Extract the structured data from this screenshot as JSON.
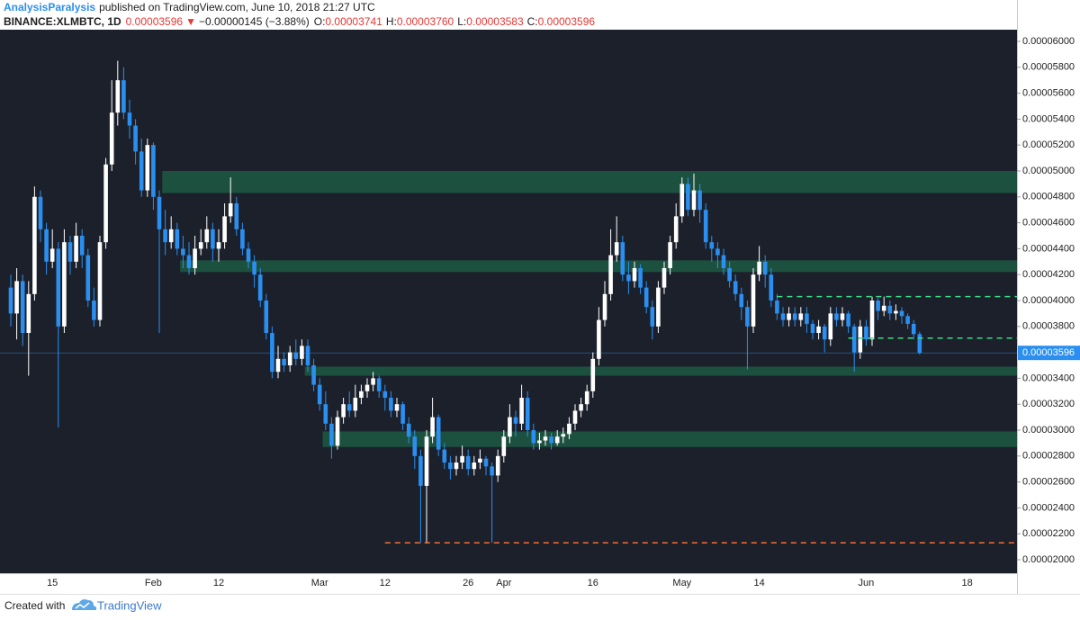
{
  "header": {
    "author": "AnalysisParalysis",
    "published": "published on TradingView.com, June 10, 2018 21:27 UTC",
    "symbol": "BINANCE:XLMBTC, 1D",
    "last": "0.00003596",
    "arrow": "▼",
    "change": "−0.00000145 (−3.88%)",
    "ohlc": [
      {
        "label": "O:",
        "value": "0.00003741"
      },
      {
        "label": "H:",
        "value": "0.00003760"
      },
      {
        "label": "L:",
        "value": "0.00003583"
      },
      {
        "label": "C:",
        "value": "0.00003596"
      }
    ]
  },
  "footer": {
    "created": "Created with",
    "brand": "TradingView"
  },
  "chart_data": {
    "type": "candlestick",
    "up_color": "#ffffff",
    "down_color": "#2a8ff0",
    "zone_color": "#1d5a43",
    "last_price_color": "#2a8ff0",
    "ylim": [
      1.896e-05,
      6.09e-05
    ],
    "yticks": [
      {
        "value": 6e-05,
        "label": "0.00006000"
      },
      {
        "value": 5.8e-05,
        "label": "0.00005800"
      },
      {
        "value": 5.6e-05,
        "label": "0.00005600"
      },
      {
        "value": 5.4e-05,
        "label": "0.00005400"
      },
      {
        "value": 5.2e-05,
        "label": "0.00005200"
      },
      {
        "value": 5e-05,
        "label": "0.00005000"
      },
      {
        "value": 4.8e-05,
        "label": "0.00004800"
      },
      {
        "value": 4.6e-05,
        "label": "0.00004600"
      },
      {
        "value": 4.4e-05,
        "label": "0.00004400"
      },
      {
        "value": 4.2e-05,
        "label": "0.00004200"
      },
      {
        "value": 4e-05,
        "label": "0.00004000"
      },
      {
        "value": 3.8e-05,
        "label": "0.00003800"
      },
      {
        "value": 3.4e-05,
        "label": "0.00003400"
      },
      {
        "value": 3.2e-05,
        "label": "0.00003200"
      },
      {
        "value": 3e-05,
        "label": "0.00003000"
      },
      {
        "value": 2.8e-05,
        "label": "0.00002800"
      },
      {
        "value": 2.6e-05,
        "label": "0.00002600"
      },
      {
        "value": 2.4e-05,
        "label": "0.00002400"
      },
      {
        "value": 2.2e-05,
        "label": "0.00002200"
      },
      {
        "value": 2e-05,
        "label": "0.00002000"
      }
    ],
    "zones": [
      {
        "low": 4.83e-05,
        "high": 5e-05,
        "start": 26
      },
      {
        "low": 4.22e-05,
        "high": 4.31e-05,
        "start": 29
      },
      {
        "low": 3.42e-05,
        "high": 3.49e-05,
        "start": 50
      },
      {
        "low": 2.87e-05,
        "high": 2.99e-05,
        "start": 53
      }
    ],
    "levels": [
      {
        "value": 4.03e-05,
        "start": 129,
        "color": "#3ddc84"
      },
      {
        "value": 3.71e-05,
        "start": 141,
        "color": "#3ddc84"
      },
      {
        "value": 2.13e-05,
        "start": 63,
        "color": "#ff6a2b"
      }
    ],
    "categories": [
      null,
      null,
      null,
      null,
      null,
      null,
      null,
      "15",
      null,
      null,
      null,
      null,
      null,
      null,
      null,
      null,
      null,
      null,
      null,
      null,
      null,
      null,
      null,
      null,
      "Feb",
      null,
      null,
      null,
      null,
      null,
      null,
      null,
      null,
      null,
      null,
      "12",
      null,
      null,
      null,
      null,
      null,
      null,
      null,
      null,
      null,
      null,
      null,
      null,
      null,
      null,
      null,
      null,
      "Mar",
      null,
      null,
      null,
      null,
      null,
      null,
      null,
      null,
      null,
      null,
      "12",
      null,
      null,
      null,
      null,
      null,
      null,
      null,
      null,
      null,
      null,
      null,
      null,
      null,
      "26",
      null,
      null,
      null,
      null,
      null,
      "Apr",
      null,
      null,
      null,
      null,
      null,
      null,
      null,
      null,
      null,
      null,
      null,
      null,
      null,
      null,
      "16",
      null,
      null,
      null,
      null,
      null,
      null,
      null,
      null,
      null,
      null,
      null,
      null,
      null,
      null,
      "May",
      null,
      null,
      null,
      null,
      null,
      null,
      null,
      null,
      null,
      null,
      null,
      null,
      "14",
      null,
      null,
      null,
      null,
      null,
      null,
      null,
      null,
      null,
      null,
      null,
      null,
      null,
      null,
      null,
      null,
      null,
      "Jun",
      null,
      null,
      null,
      null,
      null,
      null,
      null,
      null,
      null,
      null,
      null,
      null,
      null,
      null,
      null,
      null,
      "18"
    ],
    "candles": [
      [
        4.1e-05,
        4.2e-05,
        3.8e-05,
        3.9e-05
      ],
      [
        3.9e-05,
        4.25e-05,
        3.7e-05,
        4.15e-05
      ],
      [
        4.15e-05,
        4.2e-05,
        3.65e-05,
        3.75e-05
      ],
      [
        3.75e-05,
        4.15e-05,
        3.42e-05,
        4.05e-05
      ],
      [
        4.05e-05,
        4.88e-05,
        4e-05,
        4.8e-05
      ],
      [
        4.8e-05,
        4.85e-05,
        4.45e-05,
        4.55e-05
      ],
      [
        4.55e-05,
        4.6e-05,
        4.2e-05,
        4.3e-05
      ],
      [
        4.3e-05,
        4.55e-05,
        4.25e-05,
        4.4e-05
      ],
      [
        4.4e-05,
        4.45e-05,
        3.02e-05,
        3.8e-05
      ],
      [
        3.8e-05,
        4.55e-05,
        3.75e-05,
        4.45e-05
      ],
      [
        4.45e-05,
        4.5e-05,
        4.2e-05,
        4.3e-05
      ],
      [
        4.3e-05,
        4.6e-05,
        4.25e-05,
        4.5e-05
      ],
      [
        4.5e-05,
        4.55e-05,
        4.25e-05,
        4.35e-05
      ],
      [
        4.35e-05,
        4.4e-05,
        3.95e-05,
        4e-05
      ],
      [
        4e-05,
        4.1e-05,
        3.8e-05,
        3.85e-05
      ],
      [
        3.85e-05,
        4.5e-05,
        3.8e-05,
        4.45e-05
      ],
      [
        4.45e-05,
        5.1e-05,
        4.4e-05,
        5.05e-05
      ],
      [
        5.05e-05,
        5.7e-05,
        5e-05,
        5.45e-05
      ],
      [
        5.45e-05,
        5.85e-05,
        5.35e-05,
        5.7e-05
      ],
      [
        5.7e-05,
        5.8e-05,
        5.4e-05,
        5.45e-05
      ],
      [
        5.45e-05,
        5.55e-05,
        5.25e-05,
        5.35e-05
      ],
      [
        5.35e-05,
        5.4e-05,
        5.05e-05,
        5.15e-05
      ],
      [
        5.15e-05,
        5.25e-05,
        4.8e-05,
        4.85e-05
      ],
      [
        4.85e-05,
        5.25e-05,
        4.8e-05,
        5.2e-05
      ],
      [
        5.2e-05,
        5.22e-05,
        4.7e-05,
        4.8e-05
      ],
      [
        4.8e-05,
        4.85e-05,
        3.75e-05,
        4.55e-05
      ],
      [
        4.55e-05,
        4.7e-05,
        4.35e-05,
        4.45e-05
      ],
      [
        4.45e-05,
        4.65e-05,
        4.4e-05,
        4.55e-05
      ],
      [
        4.55e-05,
        4.6e-05,
        4.35e-05,
        4.4e-05
      ],
      [
        4.4e-05,
        4.5e-05,
        4.25e-05,
        4.35e-05
      ],
      [
        4.35e-05,
        4.45e-05,
        4.2e-05,
        4.25e-05
      ],
      [
        4.25e-05,
        4.5e-05,
        4.2e-05,
        4.4e-05
      ],
      [
        4.4e-05,
        4.55e-05,
        4.35e-05,
        4.45e-05
      ],
      [
        4.45e-05,
        4.65e-05,
        4.4e-05,
        4.55e-05
      ],
      [
        4.55e-05,
        4.6e-05,
        4.3e-05,
        4.4e-05
      ],
      [
        4.4e-05,
        4.55e-05,
        4.3e-05,
        4.45e-05
      ],
      [
        4.45e-05,
        4.75e-05,
        4.4e-05,
        4.65e-05
      ],
      [
        4.65e-05,
        4.95e-05,
        4.6e-05,
        4.75e-05
      ],
      [
        4.75e-05,
        4.8e-05,
        4.5e-05,
        4.55e-05
      ],
      [
        4.55e-05,
        4.6e-05,
        4.35e-05,
        4.4e-05
      ],
      [
        4.4e-05,
        4.45e-05,
        4.25e-05,
        4.3e-05
      ],
      [
        4.3e-05,
        4.35e-05,
        4.1e-05,
        4.2e-05
      ],
      [
        4.2e-05,
        4.25e-05,
        3.95e-05,
        4e-05
      ],
      [
        4e-05,
        4.05e-05,
        3.7e-05,
        3.75e-05
      ],
      [
        3.75e-05,
        3.8e-05,
        3.4e-05,
        3.45e-05
      ],
      [
        3.45e-05,
        3.65e-05,
        3.4e-05,
        3.55e-05
      ],
      [
        3.55e-05,
        3.6e-05,
        3.45e-05,
        3.5e-05
      ],
      [
        3.5e-05,
        3.65e-05,
        3.45e-05,
        3.6e-05
      ],
      [
        3.6e-05,
        3.7e-05,
        3.5e-05,
        3.55e-05
      ],
      [
        3.55e-05,
        3.7e-05,
        3.5e-05,
        3.65e-05
      ],
      [
        3.65e-05,
        3.7e-05,
        3.45e-05,
        3.5e-05
      ],
      [
        3.5e-05,
        3.55e-05,
        3.3e-05,
        3.35e-05
      ],
      [
        3.35e-05,
        3.4e-05,
        3.15e-05,
        3.2e-05
      ],
      [
        3.2e-05,
        3.3e-05,
        3e-05,
        3.05e-05
      ],
      [
        3.05e-05,
        3.1e-05,
        2.78e-05,
        2.88e-05
      ],
      [
        2.88e-05,
        3.15e-05,
        2.85e-05,
        3.1e-05
      ],
      [
        3.1e-05,
        3.25e-05,
        3.05e-05,
        3.2e-05
      ],
      [
        3.2e-05,
        3.3e-05,
        3.1e-05,
        3.15e-05
      ],
      [
        3.15e-05,
        3.35e-05,
        3.1e-05,
        3.25e-05
      ],
      [
        3.25e-05,
        3.35e-05,
        3.2e-05,
        3.3e-05
      ],
      [
        3.3e-05,
        3.4e-05,
        3.25e-05,
        3.35e-05
      ],
      [
        3.35e-05,
        3.45e-05,
        3.3e-05,
        3.4e-05
      ],
      [
        3.4e-05,
        3.42e-05,
        3.25e-05,
        3.3e-05
      ],
      [
        3.3e-05,
        3.35e-05,
        3.15e-05,
        3.25e-05
      ],
      [
        3.25e-05,
        3.3e-05,
        3.1e-05,
        3.15e-05
      ],
      [
        3.15e-05,
        3.25e-05,
        3.1e-05,
        3.2e-05
      ],
      [
        3.2e-05,
        3.22e-05,
        3e-05,
        3.05e-05
      ],
      [
        3.05e-05,
        3.1e-05,
        2.9e-05,
        2.95e-05
      ],
      [
        2.95e-05,
        3e-05,
        2.7e-05,
        2.8e-05
      ],
      [
        2.8e-05,
        2.85e-05,
        2.13e-05,
        2.57e-05
      ],
      [
        2.57e-05,
        3e-05,
        2.13e-05,
        2.95e-05
      ],
      [
        2.95e-05,
        3.25e-05,
        2.9e-05,
        3.1e-05
      ],
      [
        3.1e-05,
        3.12e-05,
        2.8e-05,
        2.85e-05
      ],
      [
        2.85e-05,
        2.9e-05,
        2.7e-05,
        2.75e-05
      ],
      [
        2.75e-05,
        2.8e-05,
        2.62e-05,
        2.7e-05
      ],
      [
        2.7e-05,
        2.8e-05,
        2.65e-05,
        2.75e-05
      ],
      [
        2.75e-05,
        2.88e-05,
        2.7e-05,
        2.8e-05
      ],
      [
        2.8e-05,
        2.85e-05,
        2.65e-05,
        2.7e-05
      ],
      [
        2.7e-05,
        2.8e-05,
        2.65e-05,
        2.75e-05
      ],
      [
        2.75e-05,
        2.85e-05,
        2.7e-05,
        2.78e-05
      ],
      [
        2.78e-05,
        2.8e-05,
        2.65e-05,
        2.72e-05
      ],
      [
        2.72e-05,
        2.75e-05,
        2.13e-05,
        2.65e-05
      ],
      [
        2.65e-05,
        2.85e-05,
        2.6e-05,
        2.8e-05
      ],
      [
        2.8e-05,
        3e-05,
        2.75e-05,
        2.95e-05
      ],
      [
        2.95e-05,
        3.2e-05,
        2.9e-05,
        3.1e-05
      ],
      [
        3.1e-05,
        3.15e-05,
        2.95e-05,
        3.05e-05
      ],
      [
        3.05e-05,
        3.35e-05,
        3e-05,
        3.25e-05
      ],
      [
        3.25e-05,
        3.3e-05,
        2.95e-05,
        3e-05
      ],
      [
        3e-05,
        3.05e-05,
        2.85e-05,
        2.9e-05
      ],
      [
        2.9e-05,
        2.98e-05,
        2.85e-05,
        2.92e-05
      ],
      [
        2.92e-05,
        3e-05,
        2.88e-05,
        2.95e-05
      ],
      [
        2.95e-05,
        2.98e-05,
        2.85e-05,
        2.9e-05
      ],
      [
        2.9e-05,
        3e-05,
        2.88e-05,
        2.95e-05
      ],
      [
        2.95e-05,
        3.02e-05,
        2.9e-05,
        2.97e-05
      ],
      [
        2.97e-05,
        3.1e-05,
        2.93e-05,
        3.05e-05
      ],
      [
        3.05e-05,
        3.2e-05,
        3e-05,
        3.15e-05
      ],
      [
        3.15e-05,
        3.25e-05,
        3.1e-05,
        3.2e-05
      ],
      [
        3.2e-05,
        3.35e-05,
        3.15e-05,
        3.3e-05
      ],
      [
        3.3e-05,
        3.6e-05,
        3.25e-05,
        3.55e-05
      ],
      [
        3.55e-05,
        3.95e-05,
        3.5e-05,
        3.85e-05
      ],
      [
        3.85e-05,
        4.15e-05,
        3.8e-05,
        4.05e-05
      ],
      [
        4.05e-05,
        4.55e-05,
        4e-05,
        4.35e-05
      ],
      [
        4.35e-05,
        4.65e-05,
        4.3e-05,
        4.45e-05
      ],
      [
        4.45e-05,
        4.5e-05,
        4.15e-05,
        4.2e-05
      ],
      [
        4.2e-05,
        4.3e-05,
        4.05e-05,
        4.15e-05
      ],
      [
        4.15e-05,
        4.3e-05,
        4.1e-05,
        4.25e-05
      ],
      [
        4.25e-05,
        4.28e-05,
        4.05e-05,
        4.1e-05
      ],
      [
        4.1e-05,
        4.15e-05,
        3.9e-05,
        3.95e-05
      ],
      [
        3.95e-05,
        4e-05,
        3.7e-05,
        3.8e-05
      ],
      [
        3.8e-05,
        4.15e-05,
        3.75e-05,
        4.1e-05
      ],
      [
        4.1e-05,
        4.3e-05,
        4.05e-05,
        4.25e-05
      ],
      [
        4.25e-05,
        4.5e-05,
        4.2e-05,
        4.45e-05
      ],
      [
        4.45e-05,
        4.75e-05,
        4.4e-05,
        4.65e-05
      ],
      [
        4.65e-05,
        4.95e-05,
        4.6e-05,
        4.9e-05
      ],
      [
        4.9e-05,
        4.95e-05,
        4.65e-05,
        4.7e-05
      ],
      [
        4.7e-05,
        4.98e-05,
        4.65e-05,
        4.85e-05
      ],
      [
        4.85e-05,
        4.9e-05,
        4.6e-05,
        4.7e-05
      ],
      [
        4.7e-05,
        4.75e-05,
        4.4e-05,
        4.45e-05
      ],
      [
        4.45e-05,
        4.5e-05,
        4.3e-05,
        4.4e-05
      ],
      [
        4.4e-05,
        4.45e-05,
        4.25e-05,
        4.35e-05
      ],
      [
        4.35e-05,
        4.4e-05,
        4.2e-05,
        4.25e-05
      ],
      [
        4.25e-05,
        4.3e-05,
        4.1e-05,
        4.15e-05
      ],
      [
        4.15e-05,
        4.2e-05,
        4e-05,
        4.05e-05
      ],
      [
        4.05e-05,
        4.1e-05,
        3.85e-05,
        3.95e-05
      ],
      [
        3.95e-05,
        4e-05,
        3.47e-05,
        3.8e-05
      ],
      [
        3.8e-05,
        4.25e-05,
        3.75e-05,
        4.2e-05
      ],
      [
        4.2e-05,
        4.42e-05,
        4.15e-05,
        4.3e-05
      ],
      [
        4.3e-05,
        4.35e-05,
        4.1e-05,
        4.2e-05
      ],
      [
        4.2e-05,
        4.25e-05,
        3.95e-05,
        4e-05
      ],
      [
        4e-05,
        4.05e-05,
        3.85e-05,
        3.9e-05
      ],
      [
        3.9e-05,
        3.95e-05,
        3.8e-05,
        3.85e-05
      ],
      [
        3.85e-05,
        3.95e-05,
        3.8e-05,
        3.9e-05
      ],
      [
        3.9e-05,
        3.95e-05,
        3.8e-05,
        3.85e-05
      ],
      [
        3.85e-05,
        3.95e-05,
        3.8e-05,
        3.9e-05
      ],
      [
        3.9e-05,
        3.95e-05,
        3.75e-05,
        3.82e-05
      ],
      [
        3.82e-05,
        3.85e-05,
        3.7e-05,
        3.75e-05
      ],
      [
        3.75e-05,
        3.85e-05,
        3.7e-05,
        3.8e-05
      ],
      [
        3.8e-05,
        3.82e-05,
        3.6e-05,
        3.7e-05
      ],
      [
        3.7e-05,
        3.95e-05,
        3.65e-05,
        3.9e-05
      ],
      [
        3.9e-05,
        3.95e-05,
        3.8e-05,
        3.85e-05
      ],
      [
        3.85e-05,
        3.95e-05,
        3.8e-05,
        3.9e-05
      ],
      [
        3.9e-05,
        3.92e-05,
        3.75e-05,
        3.8e-05
      ],
      [
        3.8e-05,
        3.82e-05,
        3.45e-05,
        3.6e-05
      ],
      [
        3.6e-05,
        3.85e-05,
        3.55e-05,
        3.8e-05
      ],
      [
        3.8e-05,
        3.85e-05,
        3.65e-05,
        3.7e-05
      ],
      [
        3.7e-05,
        4.03e-05,
        3.65e-05,
        4e-05
      ],
      [
        4e-05,
        4.02e-05,
        3.85e-05,
        3.92e-05
      ],
      [
        3.92e-05,
        4.03e-05,
        3.88e-05,
        3.96e-05
      ],
      [
        3.96e-05,
        4e-05,
        3.85e-05,
        3.9e-05
      ],
      [
        3.9e-05,
        3.97e-05,
        3.85e-05,
        3.92e-05
      ],
      [
        3.92e-05,
        3.95e-05,
        3.82e-05,
        3.88e-05
      ],
      [
        3.88e-05,
        3.9e-05,
        3.78e-05,
        3.82e-05
      ],
      [
        3.82e-05,
        3.85e-05,
        3.7e-05,
        3.741e-05
      ],
      [
        3.741e-05,
        3.76e-05,
        3.583e-05,
        3.596e-05
      ],
      null,
      null,
      null,
      null,
      null,
      null,
      null,
      null
    ]
  }
}
